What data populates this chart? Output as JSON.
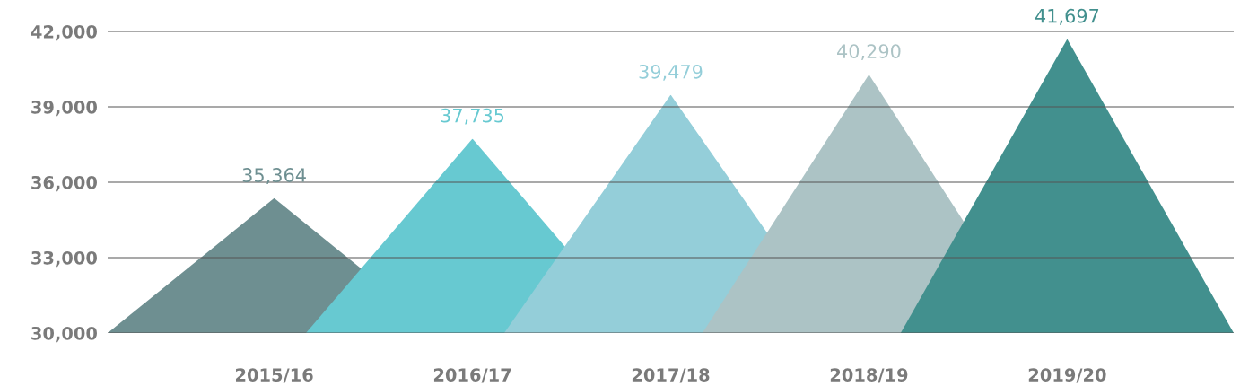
{
  "chart_data": {
    "type": "bar",
    "categories": [
      "2015/16",
      "2016/17",
      "2017/18",
      "2018/19",
      "2019/20"
    ],
    "values": [
      35364,
      37735,
      39479,
      40290,
      41697
    ],
    "colors": [
      "#6e8f91",
      "#67c9d1",
      "#94ced9",
      "#acc3c5",
      "#42908e"
    ],
    "value_labels": [
      "35,364",
      "37,735",
      "39,479",
      "40,290",
      "41,697"
    ],
    "ylim": [
      30000,
      42000
    ],
    "yticks": [
      {
        "value": 30000,
        "label": "30,000"
      },
      {
        "value": 33000,
        "label": "33,000"
      },
      {
        "value": 36000,
        "label": "36,000"
      },
      {
        "value": 39000,
        "label": "39,000"
      },
      {
        "value": 42000,
        "label": "42,000"
      }
    ],
    "grid": "y"
  }
}
